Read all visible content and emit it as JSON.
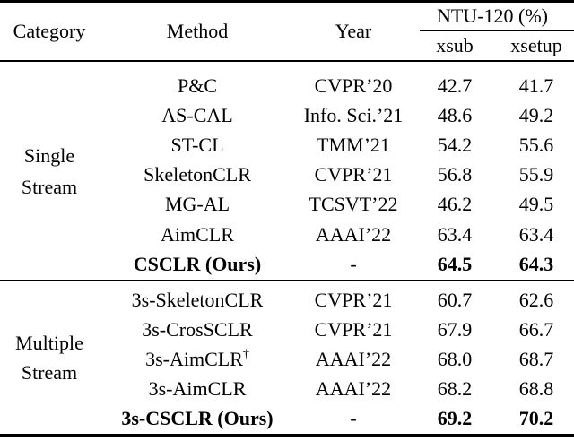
{
  "colors": {
    "text": "#000000",
    "background": "#ffffff",
    "rule": "#000000"
  },
  "header": {
    "category": "Category",
    "method": "Method",
    "year": "Year",
    "group": "NTU-120 (%)",
    "xsub": "xsub",
    "xsetup": "xsetup"
  },
  "sections": [
    {
      "category_line1": "Single",
      "category_line2": "Stream",
      "rows": [
        {
          "method": "P&C",
          "year": "CVPR’20",
          "xsub": "42.7",
          "xsetup": "41.7"
        },
        {
          "method": "AS-CAL",
          "year": "Info. Sci.’21",
          "xsub": "48.6",
          "xsetup": "49.2"
        },
        {
          "method": "ST-CL",
          "year": "TMM’21",
          "xsub": "54.2",
          "xsetup": "55.6"
        },
        {
          "method": "SkeletonCLR",
          "year": "CVPR’21",
          "xsub": "56.8",
          "xsetup": "55.9"
        },
        {
          "method": "MG-AL",
          "year": "TCSVT’22",
          "xsub": "46.2",
          "xsetup": "49.5"
        },
        {
          "method": "AimCLR",
          "year": "AAAI’22",
          "xsub": "63.4",
          "xsetup": "63.4"
        },
        {
          "method": "CSCLR (Ours)",
          "year": "-",
          "xsub": "64.5",
          "xsetup": "64.3"
        }
      ]
    },
    {
      "category_line1": "Multiple",
      "category_line2": "Stream",
      "rows": [
        {
          "method": "3s-SkeletonCLR",
          "year": "CVPR’21",
          "xsub": "60.7",
          "xsetup": "62.6"
        },
        {
          "method": "3s-CrosSCLR",
          "year": "CVPR’21",
          "xsub": "67.9",
          "xsetup": "66.7"
        },
        {
          "method": "3s-AimCLR",
          "method_sup": "†",
          "year": "AAAI’22",
          "xsub": "68.0",
          "xsetup": "68.7"
        },
        {
          "method": "3s-AimCLR",
          "year": "AAAI’22",
          "xsub": "68.2",
          "xsetup": "68.8"
        },
        {
          "method": "3s-CSCLR (Ours)",
          "year": "-",
          "xsub": "69.2",
          "xsetup": "70.2"
        }
      ]
    }
  ]
}
